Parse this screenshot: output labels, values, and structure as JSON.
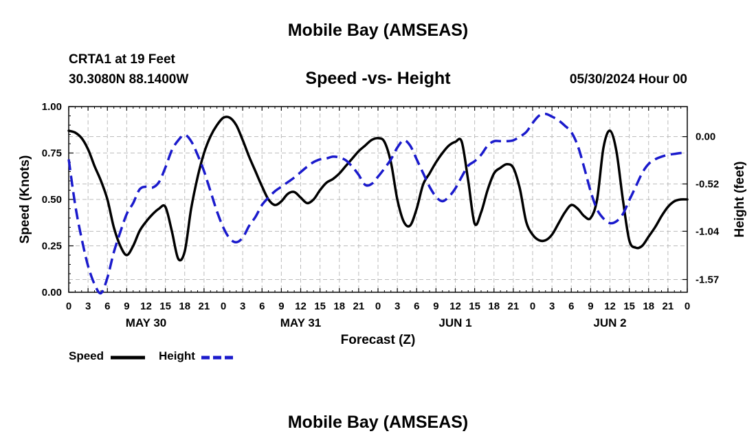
{
  "header": {
    "title": "Mobile Bay (AMSEAS)",
    "station": "CRTA1 at 19 Feet",
    "coords": "30.3080N  88.1400W",
    "subtitle": "Speed -vs- Height",
    "datetime": "05/30/2024 Hour 00"
  },
  "footer": {
    "title": "Mobile Bay (AMSEAS)"
  },
  "legend": {
    "speed_label": "Speed",
    "height_label": "Height"
  },
  "colors": {
    "speed": "#000000",
    "height": "#1a1acc",
    "grid": "#bbbbbb"
  },
  "chart_data": {
    "type": "line",
    "xlabel": "Forecast (Z)",
    "ylabel": "Speed (Knots)",
    "y2label": "Height (feet)",
    "xlim": [
      0,
      96
    ],
    "ylim": [
      0,
      1
    ],
    "y2lim": [
      -1.71,
      0.33
    ],
    "x_ticks": [
      0,
      3,
      6,
      9,
      12,
      15,
      18,
      21,
      24,
      27,
      30,
      33,
      36,
      39,
      42,
      45,
      48,
      51,
      54,
      57,
      60,
      63,
      66,
      69,
      72,
      75,
      78,
      81,
      84,
      87,
      90,
      93,
      96
    ],
    "x_tick_labels": [
      "0",
      "3",
      "6",
      "9",
      "12",
      "15",
      "18",
      "21",
      "0",
      "3",
      "6",
      "9",
      "12",
      "15",
      "18",
      "21",
      "0",
      "3",
      "6",
      "9",
      "12",
      "15",
      "18",
      "21",
      "0",
      "3",
      "6",
      "9",
      "12",
      "15",
      "18",
      "21",
      "0"
    ],
    "day_labels": [
      {
        "x": 12,
        "label": "MAY 30"
      },
      {
        "x": 36,
        "label": "MAY 31"
      },
      {
        "x": 60,
        "label": "JUN 1"
      },
      {
        "x": 84,
        "label": "JUN 2"
      }
    ],
    "y_ticks": [
      0,
      0.25,
      0.5,
      0.75,
      1.0
    ],
    "y_tick_labels": [
      "0.00",
      "0.25",
      "0.50",
      "0.75",
      "1.00"
    ],
    "y2_ticks": [
      0.0,
      -0.52,
      -1.04,
      -1.57
    ],
    "y2_tick_labels": [
      "0.00",
      "-0.52",
      "-1.04",
      "-1.57"
    ],
    "grid": true,
    "legend_position": "bottom-left",
    "series": [
      {
        "name": "Speed",
        "axis": "left",
        "style": "solid",
        "x": [
          0,
          1,
          2,
          3,
          4,
          5,
          6,
          7,
          8,
          9,
          10,
          11,
          12,
          13,
          14,
          15,
          16,
          17,
          18,
          19,
          20,
          21,
          22,
          23,
          24,
          25,
          26,
          27,
          28,
          29,
          30,
          31,
          32,
          33,
          34,
          35,
          36,
          37,
          38,
          39,
          40,
          41,
          42,
          43,
          44,
          45,
          46,
          47,
          48,
          49,
          50,
          51,
          52,
          53,
          54,
          55,
          56,
          57,
          58,
          59,
          60,
          61,
          62,
          63,
          64,
          65,
          66,
          67,
          68,
          69,
          70,
          71,
          72,
          73,
          74,
          75,
          76,
          77,
          78,
          79,
          80,
          81,
          82,
          83,
          84,
          85,
          86,
          87,
          88,
          89,
          90,
          91,
          92,
          93,
          94,
          95,
          96
        ],
        "values": [
          0.87,
          0.86,
          0.83,
          0.77,
          0.68,
          0.6,
          0.5,
          0.35,
          0.25,
          0.2,
          0.25,
          0.33,
          0.38,
          0.42,
          0.45,
          0.46,
          0.33,
          0.18,
          0.22,
          0.45,
          0.62,
          0.75,
          0.84,
          0.9,
          0.94,
          0.94,
          0.9,
          0.82,
          0.73,
          0.65,
          0.57,
          0.5,
          0.47,
          0.49,
          0.53,
          0.54,
          0.51,
          0.48,
          0.5,
          0.55,
          0.59,
          0.61,
          0.64,
          0.68,
          0.72,
          0.76,
          0.79,
          0.82,
          0.83,
          0.81,
          0.7,
          0.5,
          0.38,
          0.36,
          0.45,
          0.58,
          0.64,
          0.7,
          0.75,
          0.79,
          0.81,
          0.81,
          0.6,
          0.37,
          0.43,
          0.55,
          0.64,
          0.67,
          0.69,
          0.67,
          0.56,
          0.38,
          0.31,
          0.28,
          0.28,
          0.31,
          0.37,
          0.43,
          0.47,
          0.45,
          0.41,
          0.4,
          0.5,
          0.78,
          0.87,
          0.76,
          0.5,
          0.28,
          0.24,
          0.25,
          0.3,
          0.35,
          0.41,
          0.46,
          0.49,
          0.5,
          0.5
        ]
      },
      {
        "name": "Height",
        "axis": "right",
        "style": "dashed",
        "x": [
          0,
          1,
          2,
          3,
          4,
          5,
          6,
          7,
          8,
          9,
          10,
          11,
          12,
          13,
          14,
          15,
          16,
          17,
          18,
          19,
          20,
          21,
          22,
          23,
          24,
          25,
          26,
          27,
          28,
          29,
          30,
          31,
          32,
          33,
          34,
          35,
          36,
          37,
          38,
          39,
          40,
          41,
          42,
          43,
          44,
          45,
          46,
          47,
          48,
          49,
          50,
          51,
          52,
          53,
          54,
          55,
          56,
          57,
          58,
          59,
          60,
          61,
          62,
          63,
          64,
          65,
          66,
          67,
          68,
          69,
          70,
          71,
          72,
          73,
          74,
          75,
          76,
          77,
          78,
          79,
          80,
          81,
          82,
          83,
          84,
          85,
          86,
          87,
          88,
          89,
          90,
          91,
          92,
          93,
          94,
          95,
          96
        ],
        "values": [
          -0.25,
          -0.75,
          -1.12,
          -1.42,
          -1.62,
          -1.72,
          -1.55,
          -1.27,
          -1.05,
          -0.85,
          -0.73,
          -0.58,
          -0.55,
          -0.56,
          -0.5,
          -0.34,
          -0.15,
          -0.04,
          0.02,
          -0.05,
          -0.2,
          -0.38,
          -0.6,
          -0.82,
          -1.0,
          -1.12,
          -1.16,
          -1.11,
          -0.98,
          -0.88,
          -0.75,
          -0.67,
          -0.6,
          -0.55,
          -0.5,
          -0.45,
          -0.39,
          -0.33,
          -0.28,
          -0.25,
          -0.24,
          -0.22,
          -0.23,
          -0.26,
          -0.33,
          -0.42,
          -0.53,
          -0.52,
          -0.44,
          -0.35,
          -0.25,
          -0.12,
          -0.04,
          -0.1,
          -0.25,
          -0.4,
          -0.55,
          -0.66,
          -0.71,
          -0.66,
          -0.57,
          -0.44,
          -0.32,
          -0.27,
          -0.2,
          -0.1,
          -0.05,
          -0.05,
          -0.05,
          -0.04,
          0.0,
          0.05,
          0.15,
          0.23,
          0.25,
          0.22,
          0.18,
          0.12,
          0.05,
          -0.1,
          -0.34,
          -0.6,
          -0.8,
          -0.9,
          -0.95,
          -0.93,
          -0.85,
          -0.7,
          -0.55,
          -0.4,
          -0.3,
          -0.25,
          -0.22,
          -0.2,
          -0.19,
          -0.18,
          -0.18
        ]
      }
    ]
  }
}
